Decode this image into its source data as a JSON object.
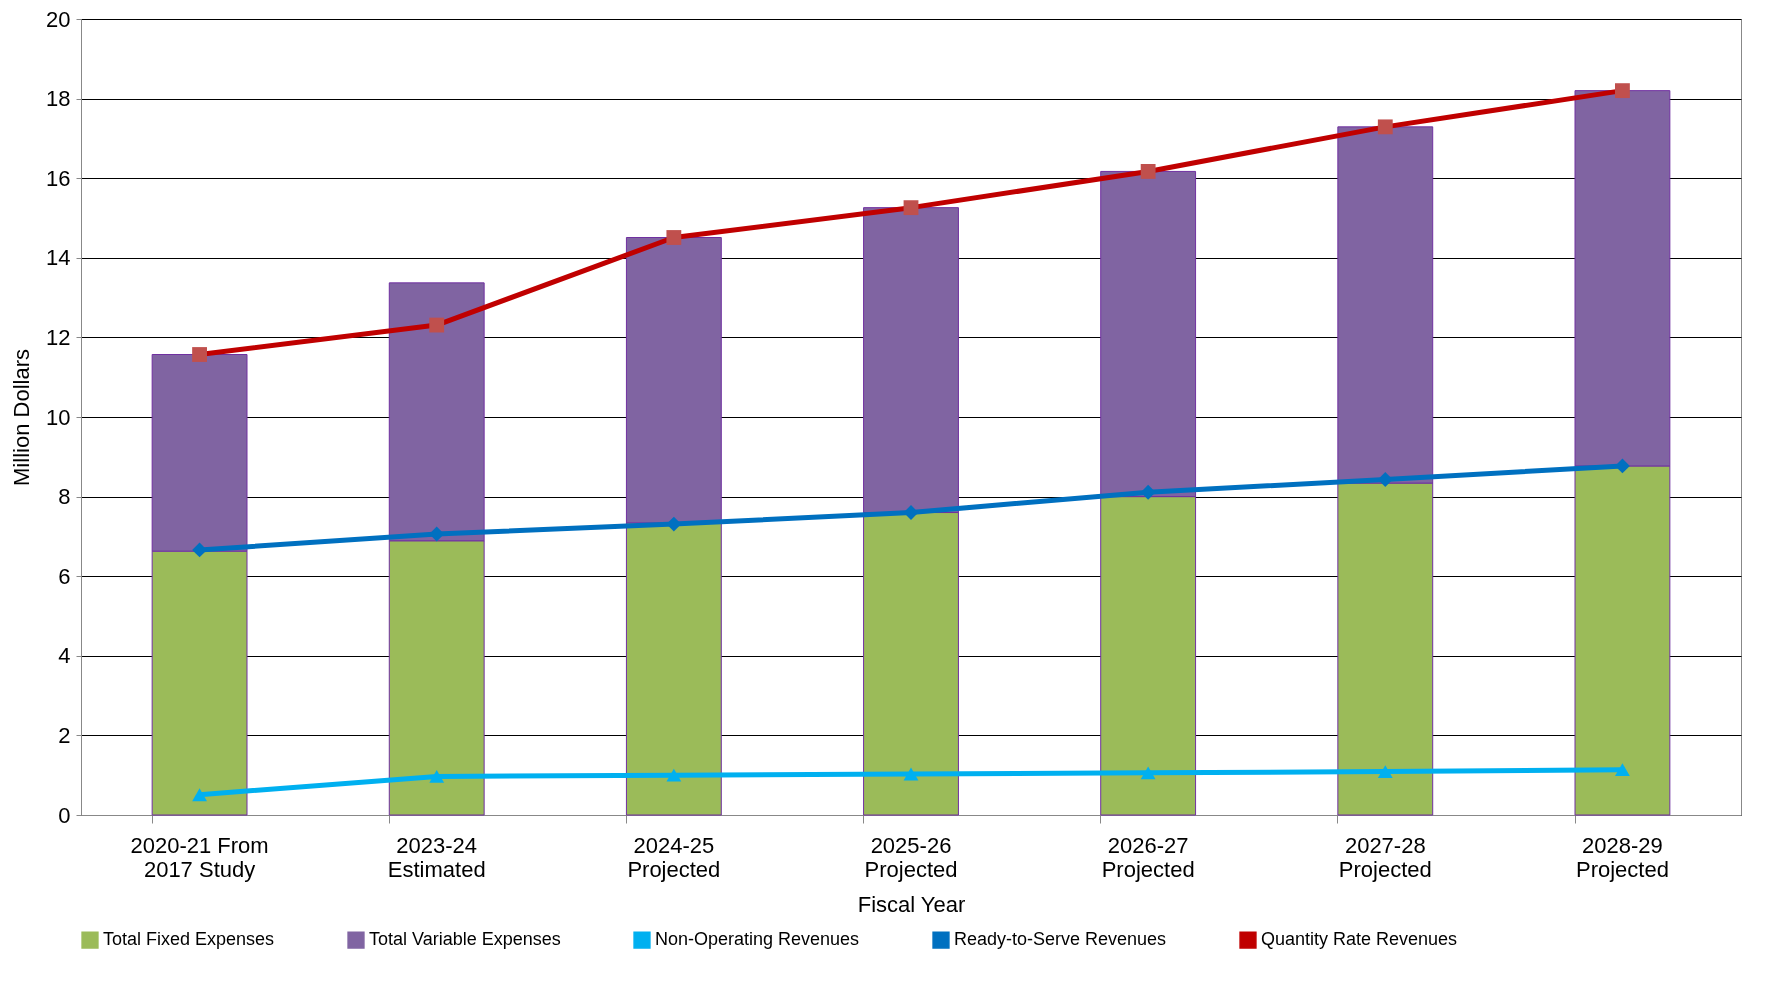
{
  "chart_data": {
    "type": "bar",
    "stacked": true,
    "xlabel": "Fiscal Year",
    "ylabel": "Million Dollars",
    "categories": [
      "2020-21 From\n2017 Study",
      "2023-24\nEstimated",
      "2024-25\nProjected",
      "2025-26\nProjected",
      "2026-27\nProjected",
      "2027-28\nProjected",
      "2028-29\nProjected"
    ],
    "ylim": [
      0,
      20
    ],
    "yticks": [
      0,
      2,
      4,
      6,
      8,
      10,
      12,
      14,
      16,
      18,
      20
    ],
    "grid": "y",
    "legend": "bottom",
    "series": [
      {
        "name": "Total Fixed Expenses",
        "color": "#9bbb59",
        "values": [
          6.63,
          6.89,
          7.34,
          7.6,
          8.0,
          8.34,
          8.77
        ]
      },
      {
        "name": "Total Variable Expenses",
        "color": "#8064a2",
        "values": [
          4.94,
          6.48,
          7.17,
          7.66,
          8.17,
          8.95,
          9.43
        ]
      },
      {
        "name": "Non-Operating Revenues",
        "type": "line",
        "marker": "triangle",
        "color": "#00b0f0",
        "values": [
          0.51,
          0.97,
          1.0,
          1.03,
          1.06,
          1.09,
          1.14
        ]
      },
      {
        "name": "Ready-to-Serve Revenues",
        "type": "line",
        "marker": "diamond",
        "color": "#0070c0",
        "values": [
          6.66,
          7.06,
          7.31,
          7.6,
          8.11,
          8.43,
          8.77
        ]
      },
      {
        "name": "Quantity Rate Revenues",
        "type": "line",
        "marker": "square",
        "color": "#c00000",
        "values": [
          11.57,
          12.31,
          14.51,
          15.26,
          16.17,
          17.29,
          18.2
        ]
      }
    ]
  }
}
